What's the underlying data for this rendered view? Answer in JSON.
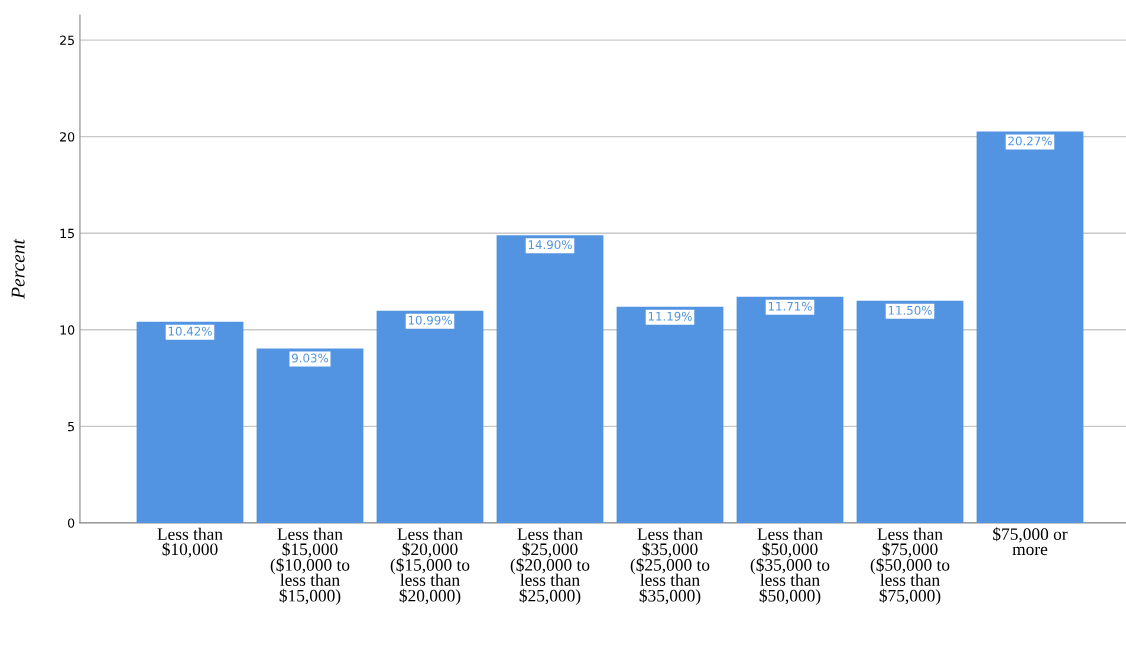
{
  "chart_data": {
    "type": "bar",
    "ylabel": "Percent",
    "categories": [
      "Less than\n$10,000",
      "Less than\n$15,000\n($10,000 to\nless than\n$15,000)",
      "Less than\n$20,000\n($15,000 to\nless than\n$20,000)",
      "Less than\n$25,000\n($20,000 to\nless than\n$25,000)",
      "Less than\n$35,000\n($25,000 to\nless than\n$35,000)",
      "Less than\n$50,000\n($35,000 to\nless than\n$50,000)",
      "Less than\n$75,000\n($50,000 to\nless than\n$75,000)",
      "$75,000 or\nmore"
    ],
    "values": [
      10.42,
      9.03,
      10.99,
      14.9,
      11.19,
      11.71,
      11.5,
      20.27
    ],
    "value_labels": [
      "10.42%",
      "9.03%",
      "10.99%",
      "14.90%",
      "11.19%",
      "11.71%",
      "11.50%",
      "20.27%"
    ],
    "color": "#5294e2",
    "ylim": [
      0,
      26.3
    ],
    "yticks": [
      0,
      5,
      10,
      15,
      20,
      25
    ],
    "grid": "y"
  }
}
